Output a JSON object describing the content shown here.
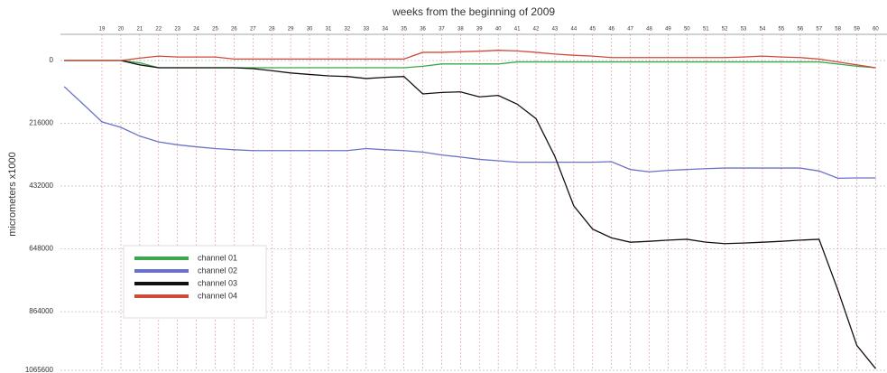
{
  "chart_data": {
    "type": "line",
    "title": "weeks from the beginning of 2009",
    "y_label": "micrometers x1000",
    "x": [
      17,
      18,
      19,
      20,
      21,
      22,
      23,
      24,
      25,
      26,
      27,
      28,
      29,
      30,
      31,
      32,
      33,
      34,
      35,
      36,
      37,
      38,
      39,
      40,
      41,
      42,
      43,
      44,
      45,
      46,
      47,
      48,
      49,
      50,
      51,
      52,
      53,
      54,
      55,
      56,
      57,
      58,
      59,
      60
    ],
    "series": [
      {
        "name": "channel 01",
        "color": "#3aa84a",
        "values": [
          0,
          0,
          0,
          0,
          8000,
          25000,
          25000,
          25000,
          25000,
          25000,
          25000,
          25000,
          25000,
          25000,
          25000,
          25000,
          25000,
          25000,
          25000,
          20000,
          12000,
          12000,
          12000,
          12000,
          5000,
          5000,
          5000,
          5000,
          5000,
          5000,
          5000,
          5000,
          5000,
          5000,
          5000,
          5000,
          5000,
          5000,
          5000,
          5000,
          5000,
          12000,
          20000,
          25000
        ]
      },
      {
        "name": "channel 02",
        "color": "#6a72c8",
        "values": [
          90000,
          150000,
          211000,
          230000,
          260000,
          280000,
          290000,
          297000,
          303000,
          307000,
          310000,
          310000,
          310000,
          310000,
          310000,
          310000,
          303000,
          307000,
          310000,
          315000,
          325000,
          332000,
          340000,
          345000,
          350000,
          350000,
          350000,
          350000,
          350000,
          348000,
          375000,
          383000,
          378000,
          375000,
          372000,
          370000,
          370000,
          370000,
          370000,
          370000,
          380000,
          405000,
          404000,
          404000
        ]
      },
      {
        "name": "channel 03",
        "color": "#111111",
        "values": [
          0,
          0,
          0,
          0,
          15000,
          25000,
          25000,
          25000,
          25000,
          25000,
          28000,
          35000,
          43000,
          48000,
          53000,
          55000,
          62000,
          58000,
          55000,
          115000,
          110000,
          108000,
          125000,
          120000,
          150000,
          200000,
          330000,
          500000,
          580000,
          610000,
          625000,
          622000,
          618000,
          615000,
          625000,
          630000,
          628000,
          625000,
          622000,
          618000,
          615000,
          790000,
          980000,
          1060000
        ]
      },
      {
        "name": "channel 04",
        "color": "#d04a3a",
        "values": [
          0,
          0,
          0,
          0,
          -8000,
          -15000,
          -12000,
          -12000,
          -12000,
          -5000,
          -5000,
          -5000,
          -5000,
          -5000,
          -5000,
          -5000,
          -5000,
          -5000,
          -5000,
          -28000,
          -28000,
          -30000,
          -32000,
          -35000,
          -33000,
          -28000,
          -22000,
          -18000,
          -15000,
          -10000,
          -10000,
          -10000,
          -10000,
          -10000,
          -10000,
          -10000,
          -12000,
          -15000,
          -12000,
          -10000,
          -5000,
          5000,
          15000,
          25000
        ]
      }
    ],
    "xlim": [
      16.8,
      60.6
    ],
    "xticks": [
      19,
      20,
      21,
      22,
      23,
      24,
      25,
      26,
      27,
      28,
      29,
      30,
      31,
      32,
      33,
      34,
      35,
      36,
      37,
      38,
      39,
      40,
      41,
      42,
      43,
      44,
      45,
      46,
      47,
      48,
      49,
      50,
      51,
      52,
      53,
      54,
      55,
      56,
      57,
      58,
      59,
      60
    ],
    "ylim": [
      -90000,
      1065600
    ],
    "yticks": [
      0,
      216000,
      432000,
      648000,
      864000,
      1065600
    ],
    "y_inverted": true,
    "grid": true,
    "legend": "lower left"
  }
}
